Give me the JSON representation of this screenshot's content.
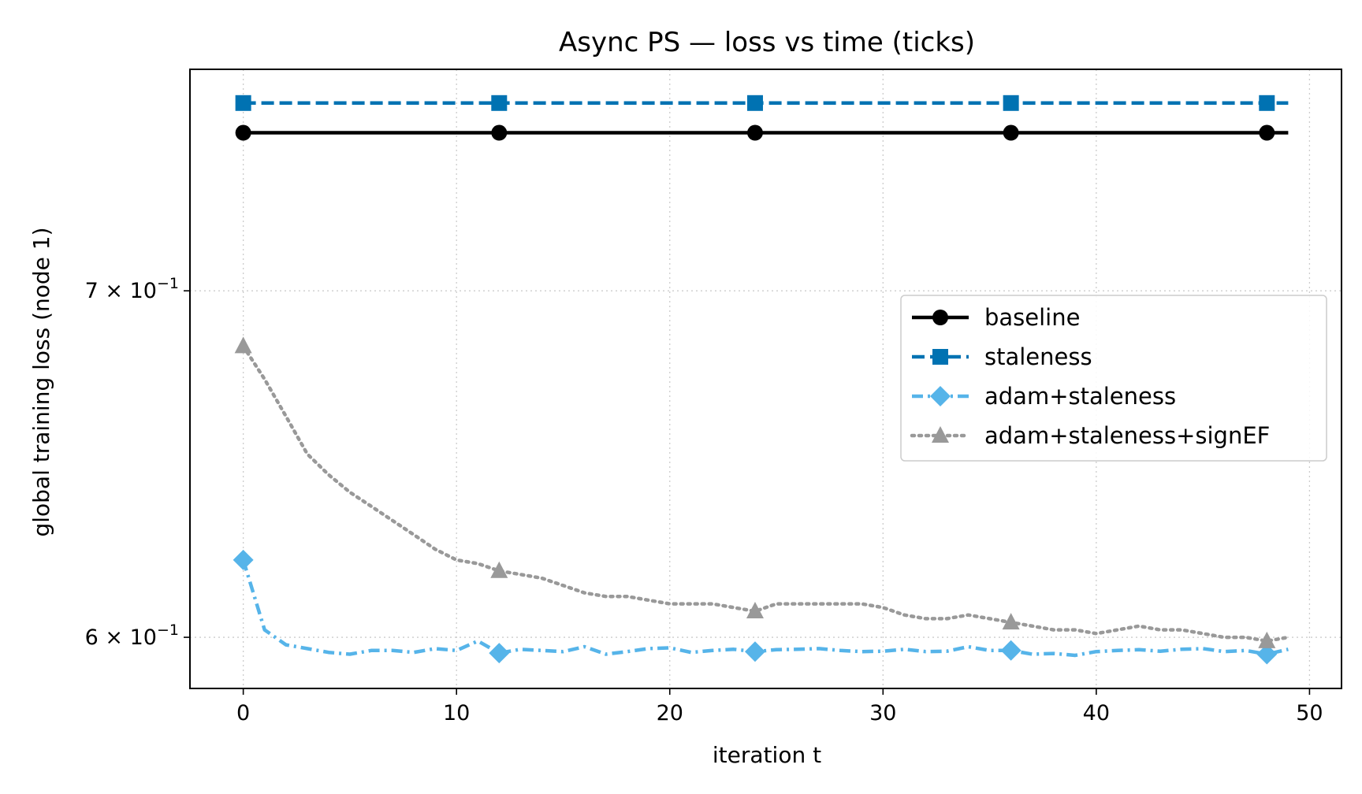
{
  "chart_data": {
    "type": "line",
    "title": "Async PS — loss vs time (ticks)",
    "xlabel": "iteration t",
    "ylabel": "global training loss (node 1)",
    "yscale": "log",
    "xlim": [
      -2.5,
      51.5
    ],
    "ylim": [
      0.5865,
      0.7725
    ],
    "xticks": [
      0,
      10,
      20,
      30,
      40,
      50
    ],
    "xtick_labels": [
      "0",
      "10",
      "20",
      "30",
      "40",
      "50"
    ],
    "yticks": [
      {
        "value": 0.7,
        "mantissa": "7",
        "exponent": "−1"
      },
      {
        "value": 0.6,
        "mantissa": "6",
        "exponent": "−1"
      }
    ],
    "ytick_base": "10",
    "grid": true,
    "legend_position": "center-right",
    "marker_every": 12,
    "x": [
      0,
      1,
      2,
      3,
      4,
      5,
      6,
      7,
      8,
      9,
      10,
      11,
      12,
      13,
      14,
      15,
      16,
      17,
      18,
      19,
      20,
      21,
      22,
      23,
      24,
      25,
      26,
      27,
      28,
      29,
      30,
      31,
      32,
      33,
      34,
      35,
      36,
      37,
      38,
      39,
      40,
      41,
      42,
      43,
      44,
      45,
      46,
      47,
      48,
      49
    ],
    "series": [
      {
        "name": "baseline",
        "color": "#000000",
        "marker": "circle",
        "dash": "solid",
        "values": [
          0.751,
          0.751,
          0.751,
          0.751,
          0.751,
          0.751,
          0.751,
          0.751,
          0.751,
          0.751,
          0.751,
          0.751,
          0.751,
          0.751,
          0.751,
          0.751,
          0.751,
          0.751,
          0.751,
          0.751,
          0.751,
          0.751,
          0.751,
          0.751,
          0.751,
          0.751,
          0.751,
          0.751,
          0.751,
          0.751,
          0.751,
          0.751,
          0.751,
          0.751,
          0.751,
          0.751,
          0.751,
          0.751,
          0.751,
          0.751,
          0.751,
          0.751,
          0.751,
          0.751,
          0.751,
          0.751,
          0.751,
          0.751,
          0.751,
          0.751
        ]
      },
      {
        "name": "staleness",
        "color": "#0072b2",
        "marker": "square",
        "dash": "dashed",
        "values": [
          0.761,
          0.761,
          0.761,
          0.761,
          0.761,
          0.761,
          0.761,
          0.761,
          0.761,
          0.761,
          0.761,
          0.761,
          0.761,
          0.761,
          0.761,
          0.761,
          0.761,
          0.761,
          0.761,
          0.761,
          0.761,
          0.761,
          0.761,
          0.761,
          0.761,
          0.761,
          0.761,
          0.761,
          0.761,
          0.761,
          0.761,
          0.761,
          0.761,
          0.761,
          0.761,
          0.761,
          0.761,
          0.761,
          0.761,
          0.761,
          0.761,
          0.761,
          0.761,
          0.761,
          0.761,
          0.761,
          0.761,
          0.761,
          0.761,
          0.761
        ]
      },
      {
        "name": "adam+staleness",
        "color": "#56b4e9",
        "marker": "diamond",
        "dash": "dashdot",
        "values": [
          0.621,
          0.602,
          0.598,
          0.597,
          0.596,
          0.5955,
          0.5965,
          0.5965,
          0.596,
          0.597,
          0.5965,
          0.599,
          0.5958,
          0.5968,
          0.5965,
          0.5962,
          0.5975,
          0.5955,
          0.5962,
          0.597,
          0.5972,
          0.596,
          0.5965,
          0.5968,
          0.5962,
          0.5967,
          0.5968,
          0.597,
          0.5965,
          0.5962,
          0.5963,
          0.5968,
          0.5962,
          0.5963,
          0.5975,
          0.5965,
          0.5965,
          0.5955,
          0.5957,
          0.5952,
          0.5962,
          0.5965,
          0.5967,
          0.5963,
          0.5968,
          0.597,
          0.5962,
          0.5965,
          0.5955,
          0.5968
        ]
      },
      {
        "name": "adam+staleness+signEF",
        "color": "#999999",
        "marker": "triangle",
        "dash": "dotted",
        "values": [
          0.683,
          0.673,
          0.662,
          0.651,
          0.645,
          0.64,
          0.636,
          0.632,
          0.628,
          0.624,
          0.621,
          0.62,
          0.618,
          0.617,
          0.616,
          0.614,
          0.612,
          0.611,
          0.611,
          0.61,
          0.609,
          0.609,
          0.609,
          0.608,
          0.607,
          0.609,
          0.609,
          0.609,
          0.609,
          0.609,
          0.608,
          0.606,
          0.605,
          0.605,
          0.606,
          0.605,
          0.604,
          0.603,
          0.602,
          0.602,
          0.601,
          0.602,
          0.603,
          0.602,
          0.602,
          0.601,
          0.6,
          0.6,
          0.599,
          0.6
        ]
      }
    ]
  }
}
